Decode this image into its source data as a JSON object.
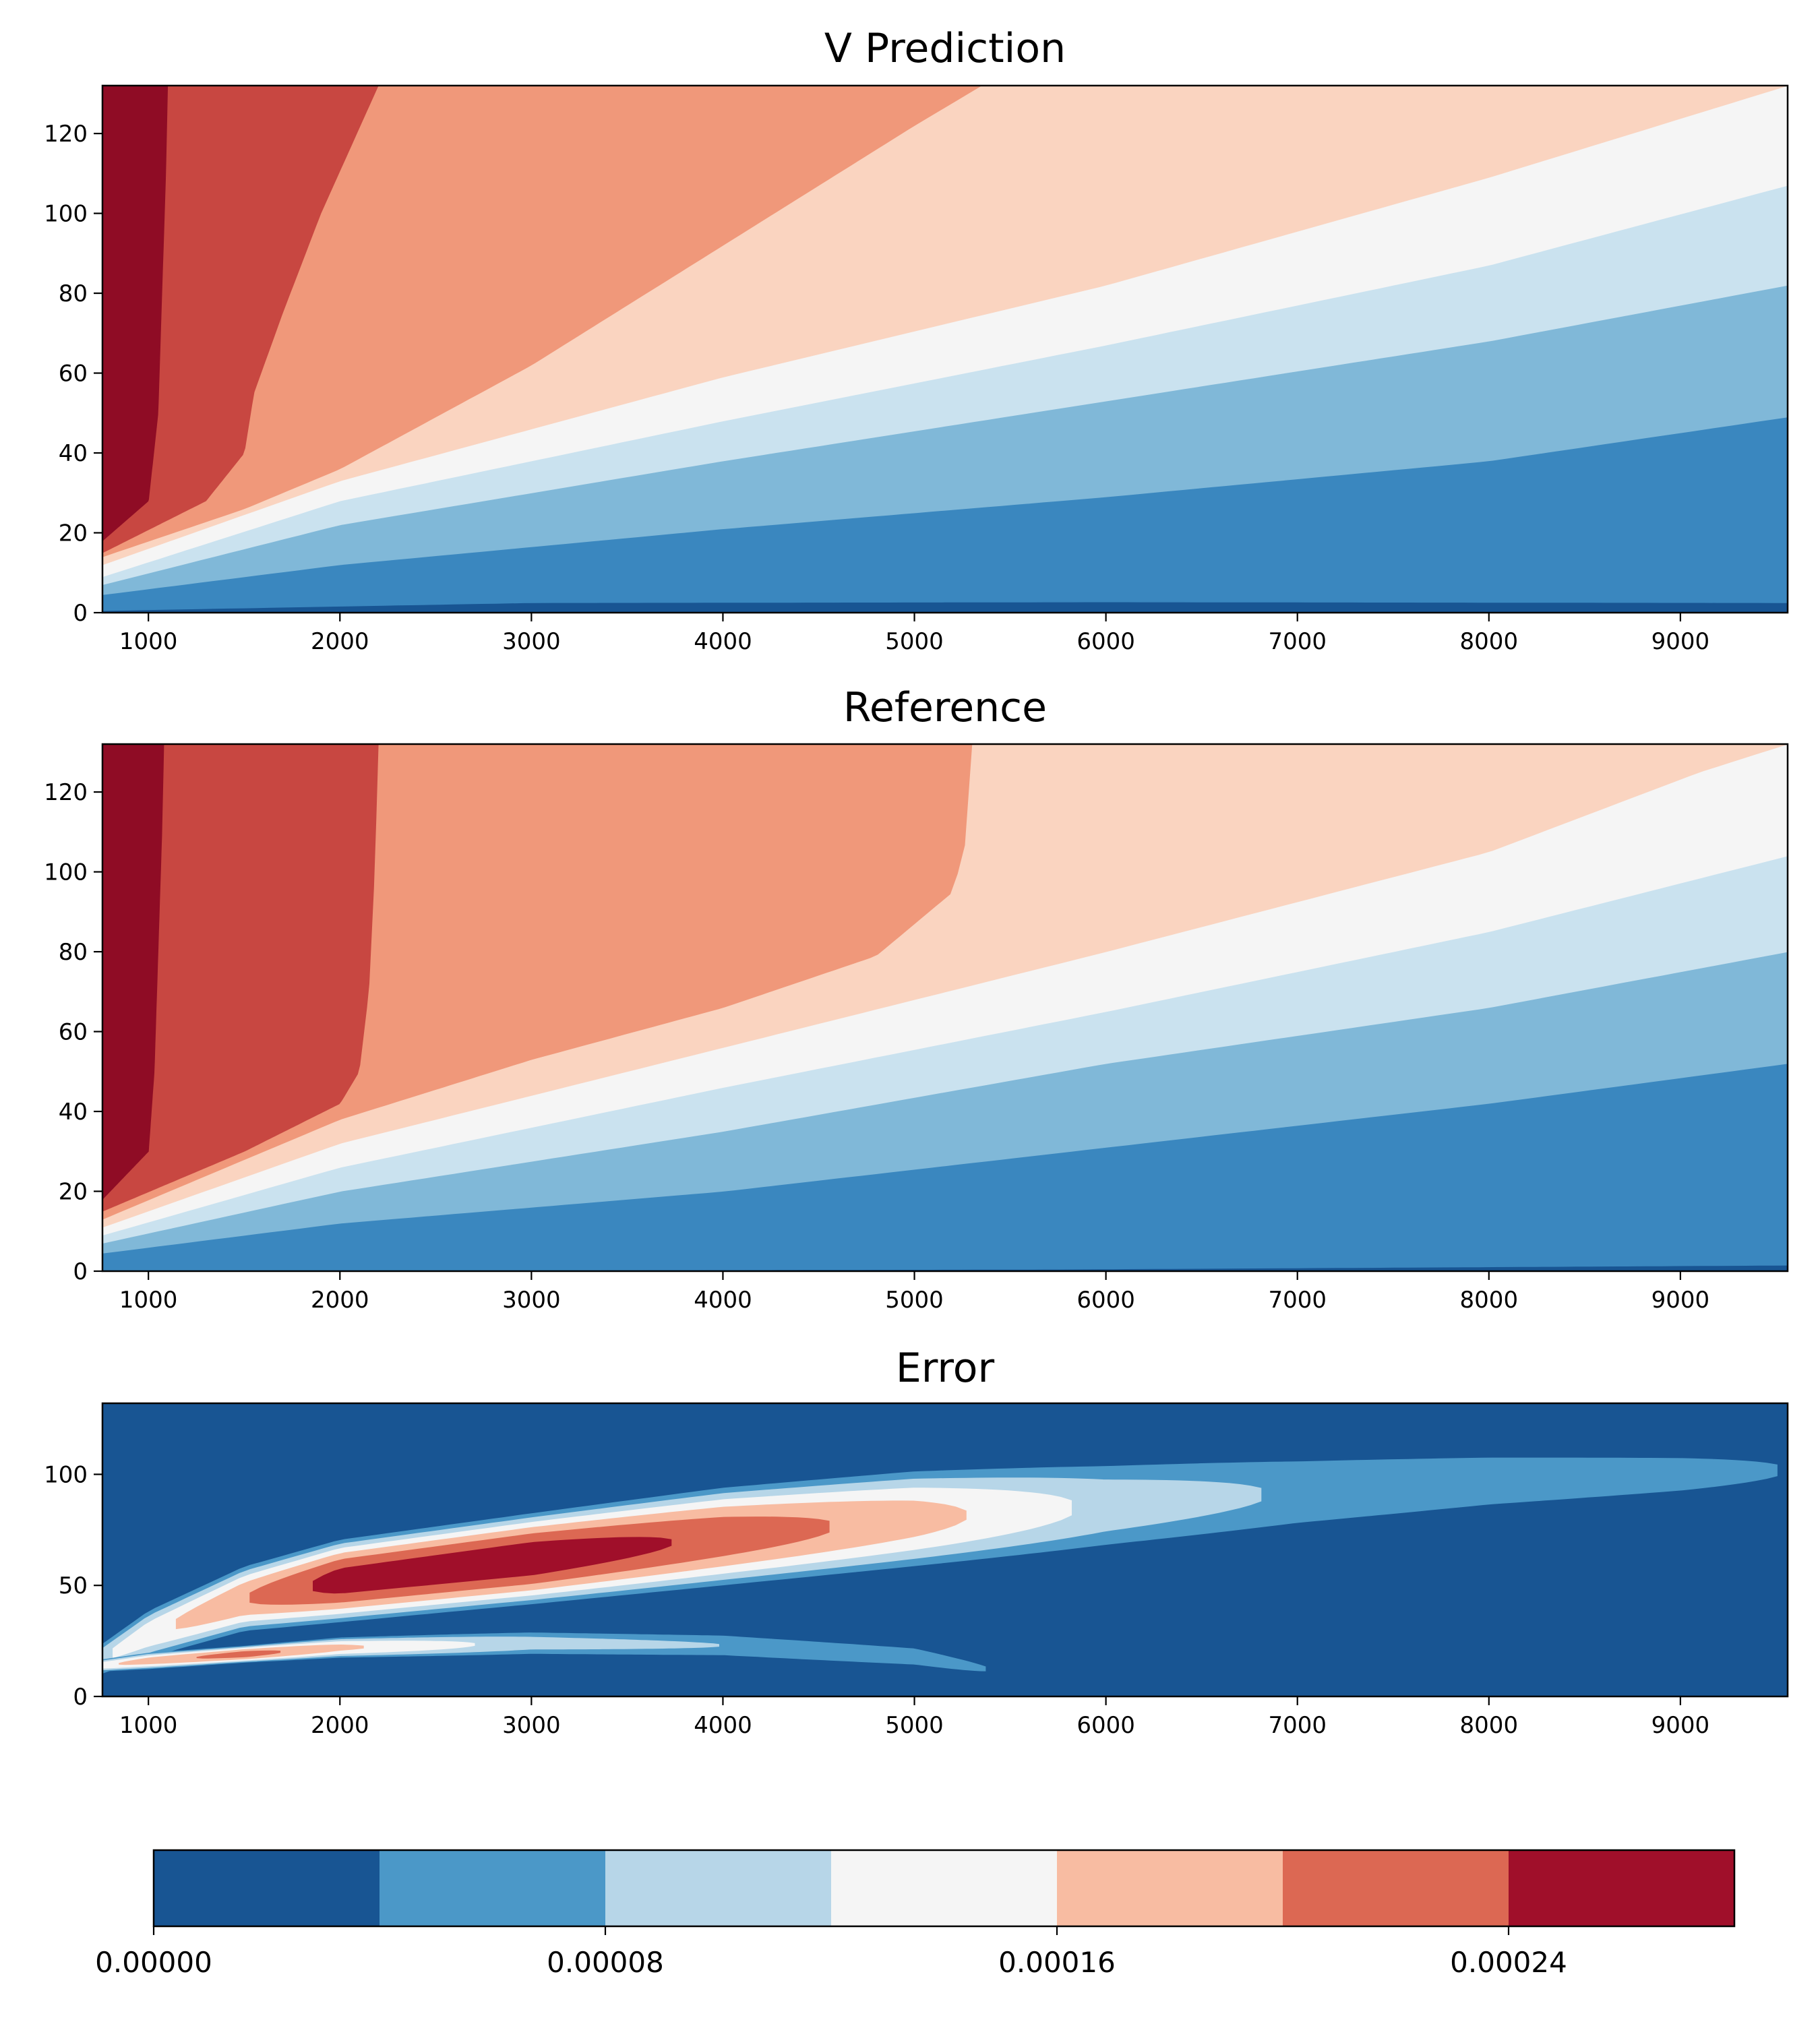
{
  "chart_data": [
    {
      "type": "heatmap",
      "title": "V Prediction",
      "xlabel": "",
      "ylabel": "",
      "xlim": [
        760,
        9560
      ],
      "ylim": [
        0,
        132
      ],
      "xticks": [
        1000,
        2000,
        3000,
        4000,
        5000,
        6000,
        7000,
        8000,
        9000
      ],
      "yticks": [
        0,
        20,
        40,
        60,
        80,
        100,
        120
      ],
      "grid": false,
      "contour_boundaries": [
        {
          "level": "0.000035",
          "x": [
            760,
            1300,
            3000,
            6000,
            9560
          ],
          "y": [
            0.5,
            1,
            2.5,
            2.7,
            2.5
          ]
        },
        {
          "level": "0.00007",
          "x": [
            760,
            2000,
            4000,
            6000,
            8000,
            9560
          ],
          "y": [
            4.5,
            12,
            21,
            29,
            38,
            49
          ]
        },
        {
          "level": "0.000105",
          "x": [
            760,
            2000,
            4000,
            6000,
            8000,
            9560
          ],
          "y": [
            7,
            22,
            38,
            53,
            68,
            82
          ]
        },
        {
          "level": "0.00014",
          "x": [
            760,
            2000,
            4000,
            6000,
            8000,
            9560
          ],
          "y": [
            9,
            28,
            48,
            67,
            87,
            107
          ]
        },
        {
          "level": "0.000175",
          "x": [
            760,
            2000,
            4000,
            6000,
            8000,
            9560
          ],
          "y": [
            12,
            33,
            59,
            82,
            109,
            132
          ]
        },
        {
          "level": "0.00021",
          "x": [
            760,
            1500,
            2000,
            3000,
            4000,
            5000,
            5350
          ],
          "y": [
            14,
            26,
            36,
            62,
            92,
            122,
            132
          ]
        },
        {
          "level": "0.000245",
          "x": [
            760,
            1300,
            1500,
            1550,
            1700,
            1900,
            2200
          ],
          "y": [
            15,
            28,
            40,
            55,
            75,
            100,
            132
          ]
        },
        {
          "level": "0.00028",
          "x": [
            760,
            1000,
            1050,
            1070,
            1090,
            1100
          ],
          "y": [
            18,
            28,
            50,
            80,
            110,
            132
          ]
        }
      ]
    },
    {
      "type": "heatmap",
      "title": "Reference",
      "xlabel": "",
      "ylabel": "",
      "xlim": [
        760,
        9560
      ],
      "ylim": [
        0,
        132
      ],
      "xticks": [
        1000,
        2000,
        3000,
        4000,
        5000,
        6000,
        7000,
        8000,
        9000
      ],
      "yticks": [
        0,
        20,
        40,
        60,
        80,
        100,
        120
      ],
      "grid": false,
      "contour_boundaries": [
        {
          "level": "0.000035",
          "x": [
            760,
            5800,
            9560
          ],
          "y": [
            0,
            0.5,
            1.5
          ]
        },
        {
          "level": "0.00007",
          "x": [
            760,
            2000,
            4000,
            6000,
            8000,
            9560
          ],
          "y": [
            4.5,
            12,
            20,
            31,
            42,
            52
          ]
        },
        {
          "level": "0.000105",
          "x": [
            760,
            2000,
            4000,
            6000,
            8000,
            9560
          ],
          "y": [
            7,
            20,
            35,
            52,
            66,
            80
          ]
        },
        {
          "level": "0.00014",
          "x": [
            760,
            2000,
            4000,
            6000,
            8000,
            9560
          ],
          "y": [
            9,
            26,
            46,
            65,
            85,
            104
          ]
        },
        {
          "level": "0.000175",
          "x": [
            760,
            2000,
            4000,
            6000,
            8000,
            9100,
            9560
          ],
          "y": [
            11,
            32,
            56,
            80,
            105,
            125,
            132
          ]
        },
        {
          "level": "0.00021",
          "x": [
            760,
            2000,
            3000,
            4000,
            4800,
            5200,
            5280,
            5300
          ],
          "y": [
            13,
            38,
            53,
            66,
            79,
            95,
            110,
            132
          ]
        },
        {
          "level": "0.000245",
          "x": [
            760,
            1500,
            2000,
            2100,
            2150,
            2180,
            2200
          ],
          "y": [
            15,
            30,
            42,
            50,
            70,
            100,
            132
          ]
        },
        {
          "level": "0.00028",
          "x": [
            760,
            1000,
            1030,
            1050,
            1070,
            1080
          ],
          "y": [
            18,
            30,
            50,
            80,
            110,
            132
          ]
        }
      ]
    },
    {
      "type": "heatmap",
      "title": "Error",
      "xlabel": "",
      "ylabel": "",
      "xlim": [
        760,
        9560
      ],
      "ylim": [
        0,
        132
      ],
      "xticks": [
        1000,
        2000,
        3000,
        4000,
        5000,
        6000,
        7000,
        8000,
        9000
      ],
      "yticks": [
        0,
        50,
        100
      ],
      "grid": false,
      "error_ridge": {
        "x": [
          760,
          1000,
          1500,
          2000,
          3000,
          4000,
          5000,
          6000,
          7000,
          8000,
          9000,
          9560
        ],
        "center_y": [
          17,
          28,
          44,
          52,
          62,
          72,
          80,
          86,
          92,
          97,
          100,
          102
        ],
        "peak_value": [
          0.00012,
          0.00015,
          0.0002,
          0.00026,
          0.00027,
          0.00023,
          0.00018,
          0.00011,
          7.5e-05,
          6e-05,
          5e-05,
          4e-05
        ],
        "half_width_y": [
          8,
          12,
          16,
          20,
          22,
          24,
          24,
          22,
          20,
          18,
          16,
          16
        ]
      },
      "error_lower_band": {
        "x": [
          760,
          1000,
          1500,
          2000,
          3000,
          4000,
          5000,
          5400
        ],
        "center_y": [
          14,
          16,
          19,
          22,
          24,
          23,
          18,
          12
        ],
        "peak_value": [
          0.00015,
          0.00018,
          0.00022,
          0.00017,
          0.0001,
          8e-05,
          6e-05,
          4e-05
        ],
        "half_width_y": [
          3,
          4,
          4,
          5,
          6,
          6,
          6,
          5
        ]
      }
    }
  ],
  "colorbar": {
    "orientation": "horizontal",
    "levels": [
      0,
      3.5e-05,
      7e-05,
      0.000105,
      0.00014,
      0.000175,
      0.00021,
      0.000245,
      0.00028
    ],
    "colors": [
      "#185593",
      "#3a87bf",
      "#80b8d8",
      "#cae2ef",
      "#f5f5f5",
      "#fad4c0",
      "#f0987a",
      "#c84741",
      "#8f0c25"
    ],
    "ticks": [
      0,
      8e-05,
      0.00016,
      0.00024
    ],
    "tick_labels": [
      "0.00000",
      "0.00008",
      "0.00016",
      "0.00024"
    ]
  },
  "error_colorbar_colors": [
    "#185593",
    "#4b98c8",
    "#b7d6e8",
    "#f5f5f5",
    "#f8bca2",
    "#dc6853",
    "#a00f2a"
  ]
}
